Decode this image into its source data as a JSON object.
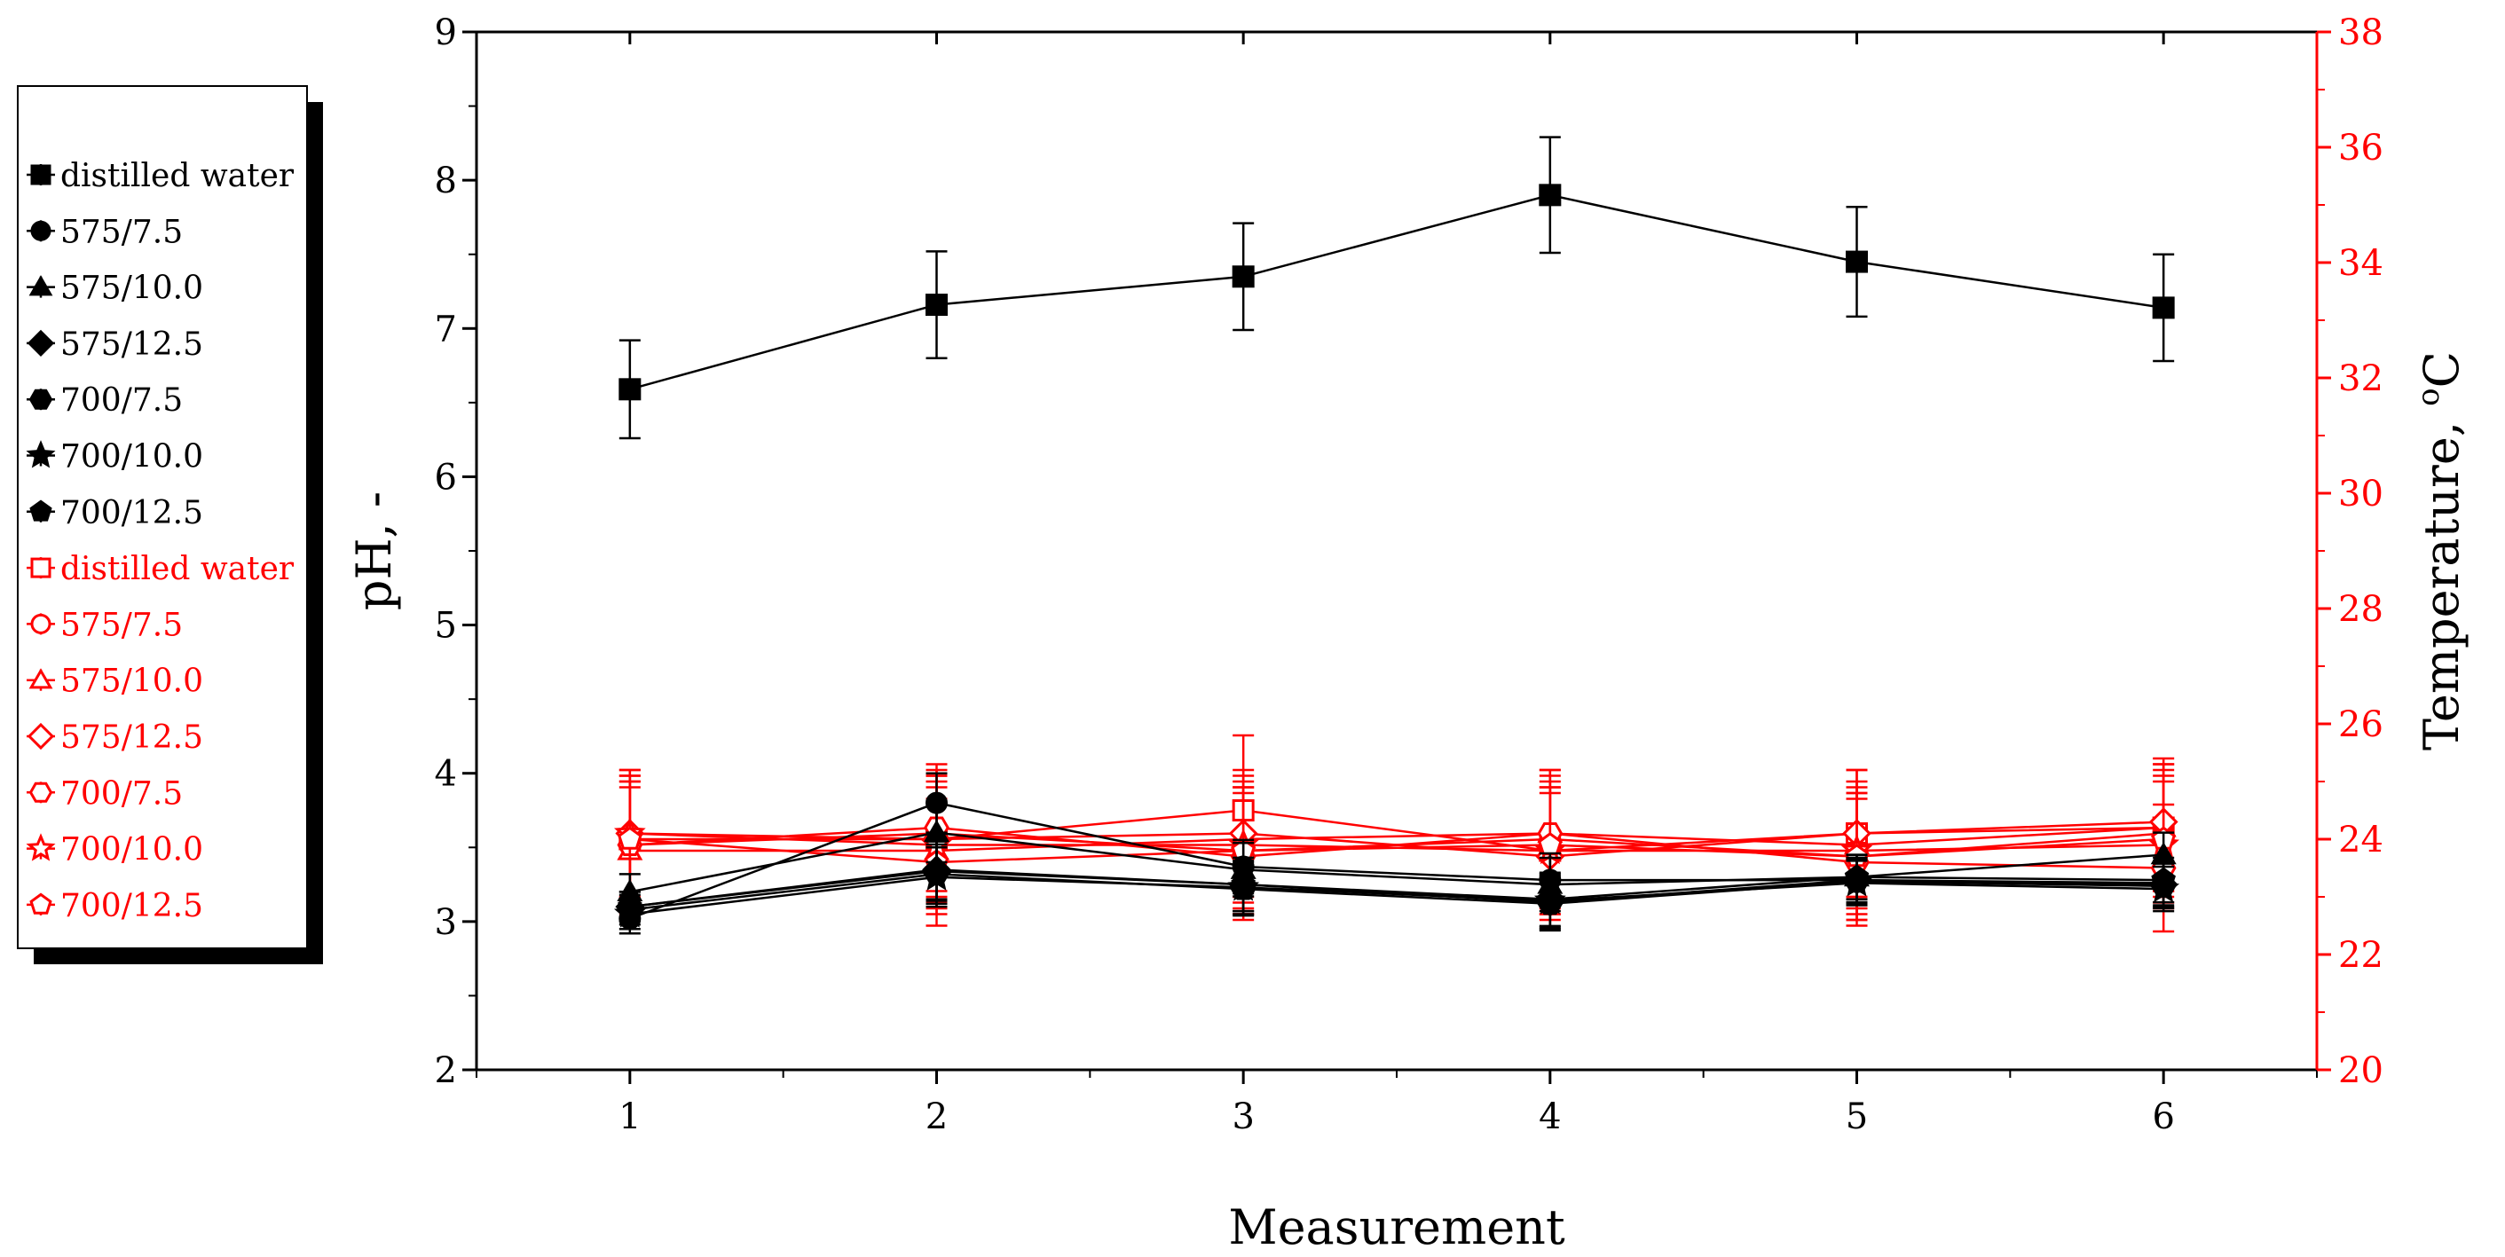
{
  "chart_data": {
    "type": "line",
    "xlabel": "Measurement",
    "ylabel_left": "pH, -",
    "ylabel_right_main": "Temperature, ",
    "ylabel_right_sup": "o",
    "ylabel_right_unit": "C",
    "x": [
      1,
      2,
      3,
      4,
      5,
      6
    ],
    "x_ticks": [
      "1",
      "2",
      "3",
      "4",
      "5",
      "6"
    ],
    "xlim": [
      0.5,
      6.5
    ],
    "ylim_left": [
      2,
      9
    ],
    "ylim_right": [
      20,
      38
    ],
    "y_left_ticks": [
      "2",
      "3",
      "4",
      "5",
      "6",
      "7",
      "8",
      "9"
    ],
    "y_right_ticks": [
      "20",
      "22",
      "24",
      "26",
      "28",
      "30",
      "32",
      "34",
      "36",
      "38"
    ],
    "legend_position": "left, outside plot",
    "colors": {
      "ph": "#000000",
      "temperature": "#ff0000"
    },
    "series": [
      {
        "name": "distilled water",
        "axis": "left",
        "color": "#000000",
        "marker": "square",
        "filled": true,
        "values": [
          6.59,
          7.16,
          7.35,
          7.9,
          7.45,
          7.14
        ],
        "errors": [
          0.33,
          0.36,
          0.36,
          0.39,
          0.37,
          0.36
        ]
      },
      {
        "name": "575/7.5",
        "axis": "left",
        "color": "#000000",
        "marker": "circle",
        "filled": true,
        "values": [
          3.02,
          3.8,
          3.37,
          3.28,
          3.28,
          3.26
        ],
        "errors": [
          0.1,
          0.2,
          0.18,
          0.18,
          0.15,
          0.15
        ]
      },
      {
        "name": "575/10.0",
        "axis": "left",
        "color": "#000000",
        "marker": "triangle",
        "filled": true,
        "values": [
          3.2,
          3.6,
          3.35,
          3.25,
          3.3,
          3.45
        ],
        "errors": [
          0.12,
          0.2,
          0.18,
          0.18,
          0.15,
          0.15
        ]
      },
      {
        "name": "575/12.5",
        "axis": "left",
        "color": "#000000",
        "marker": "diamond",
        "filled": true,
        "values": [
          3.1,
          3.35,
          3.25,
          3.13,
          3.28,
          3.25
        ],
        "errors": [
          0.1,
          0.2,
          0.18,
          0.18,
          0.15,
          0.15
        ]
      },
      {
        "name": "700/7.5",
        "axis": "left",
        "color": "#000000",
        "marker": "hexagon",
        "filled": true,
        "values": [
          3.08,
          3.32,
          3.22,
          3.12,
          3.27,
          3.24
        ],
        "errors": [
          0.1,
          0.2,
          0.18,
          0.18,
          0.15,
          0.15
        ]
      },
      {
        "name": "700/10.0",
        "axis": "left",
        "color": "#000000",
        "marker": "star",
        "filled": true,
        "values": [
          3.05,
          3.3,
          3.23,
          3.14,
          3.26,
          3.22
        ],
        "errors": [
          0.1,
          0.2,
          0.18,
          0.18,
          0.15,
          0.15
        ]
      },
      {
        "name": "700/12.5",
        "axis": "left",
        "color": "#000000",
        "marker": "pentagon",
        "filled": true,
        "values": [
          3.1,
          3.34,
          3.25,
          3.15,
          3.3,
          3.28
        ],
        "errors": [
          0.1,
          0.2,
          0.18,
          0.18,
          0.15,
          0.15
        ]
      },
      {
        "name": "distilled water",
        "axis": "right",
        "color": "#ff0000",
        "marker": "square",
        "filled": false,
        "values": [
          24.0,
          24.0,
          24.5,
          23.8,
          24.1,
          24.2
        ],
        "errors": [
          1.1,
          1.1,
          1.3,
          1.1,
          1.1,
          1.1
        ]
      },
      {
        "name": "575/7.5",
        "axis": "right",
        "color": "#ff0000",
        "marker": "circle",
        "filled": false,
        "values": [
          23.9,
          24.1,
          23.8,
          24.0,
          23.7,
          24.1
        ],
        "errors": [
          1.1,
          1.1,
          1.1,
          1.1,
          1.1,
          1.1
        ]
      },
      {
        "name": "575/10.0",
        "axis": "right",
        "color": "#ff0000",
        "marker": "triangle",
        "filled": false,
        "values": [
          23.8,
          23.8,
          24.0,
          24.1,
          23.9,
          24.2
        ],
        "errors": [
          1.1,
          1.1,
          1.1,
          1.1,
          1.1,
          1.1
        ]
      },
      {
        "name": "575/12.5",
        "axis": "right",
        "color": "#ff0000",
        "marker": "diamond",
        "filled": false,
        "values": [
          24.1,
          24.0,
          24.1,
          23.7,
          24.1,
          24.3
        ],
        "errors": [
          1.1,
          1.1,
          1.1,
          1.1,
          1.1,
          1.1
        ]
      },
      {
        "name": "700/7.5",
        "axis": "right",
        "color": "#ff0000",
        "marker": "hexagon",
        "filled": false,
        "values": [
          23.9,
          24.2,
          23.7,
          24.1,
          23.6,
          23.5
        ],
        "errors": [
          1.1,
          1.1,
          1.1,
          1.1,
          1.1,
          1.1
        ]
      },
      {
        "name": "700/10.0",
        "axis": "right",
        "color": "#ff0000",
        "marker": "star",
        "filled": false,
        "values": [
          24.1,
          23.9,
          23.9,
          23.8,
          23.8,
          23.9
        ],
        "errors": [
          1.1,
          1.1,
          1.1,
          1.1,
          1.1,
          1.1
        ]
      },
      {
        "name": "700/12.5",
        "axis": "right",
        "color": "#ff0000",
        "marker": "pentagon",
        "filled": false,
        "values": [
          24.0,
          23.6,
          23.8,
          23.9,
          23.7,
          24.0
        ],
        "errors": [
          1.1,
          1.1,
          1.1,
          1.1,
          1.1,
          1.1
        ]
      }
    ]
  }
}
